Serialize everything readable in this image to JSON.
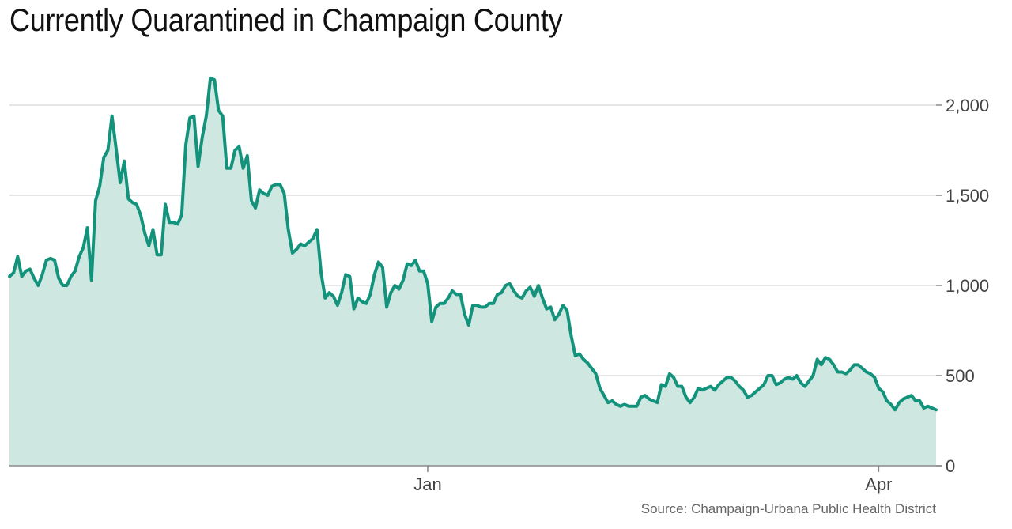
{
  "chart_data": {
    "type": "area",
    "title": "Currently Quarantined in Champaign County",
    "source": "Source: Champaign-Urbana Public Health District",
    "xlabel": "",
    "ylabel": "",
    "ylim": [
      0,
      2000
    ],
    "y_ticks": [
      0,
      500,
      1000,
      1500,
      2000
    ],
    "y_tick_labels": [
      "0",
      "500",
      "1,000",
      "1,500",
      "2,000"
    ],
    "x_ticks": [
      {
        "index": 102,
        "label": "Jan"
      },
      {
        "index": 212,
        "label": "Apr"
      }
    ],
    "grid": true,
    "colors": {
      "line": "#14937c",
      "fill": "#cfe7e1",
      "grid": "#e6e6e6",
      "axis": "#8a8a8a"
    },
    "series": [
      {
        "name": "",
        "values": [
          1050,
          1070,
          1160,
          1050,
          1080,
          1090,
          1040,
          1000,
          1060,
          1140,
          1150,
          1140,
          1040,
          1000,
          1000,
          1050,
          1080,
          1160,
          1210,
          1320,
          1030,
          1470,
          1550,
          1710,
          1750,
          1940,
          1760,
          1570,
          1690,
          1480,
          1460,
          1450,
          1390,
          1290,
          1220,
          1310,
          1170,
          1170,
          1450,
          1350,
          1350,
          1340,
          1390,
          1780,
          1930,
          1940,
          1660,
          1820,
          1940,
          2150,
          2140,
          1970,
          1940,
          1650,
          1650,
          1750,
          1770,
          1650,
          1720,
          1470,
          1430,
          1530,
          1510,
          1500,
          1550,
          1560,
          1560,
          1510,
          1310,
          1180,
          1200,
          1230,
          1220,
          1240,
          1260,
          1310,
          1070,
          930,
          960,
          940,
          890,
          960,
          1060,
          1050,
          870,
          930,
          910,
          900,
          950,
          1060,
          1130,
          1100,
          880,
          960,
          1000,
          980,
          1030,
          1120,
          1110,
          1140,
          1080,
          1080,
          1010,
          800,
          880,
          900,
          900,
          930,
          970,
          950,
          950,
          840,
          780,
          890,
          890,
          880,
          880,
          900,
          900,
          950,
          960,
          1000,
          1010,
          970,
          940,
          930,
          970,
          990,
          940,
          1000,
          930,
          870,
          880,
          810,
          840,
          890,
          860,
          720,
          610,
          620,
          590,
          570,
          540,
          510,
          430,
          390,
          350,
          360,
          340,
          330,
          340,
          330,
          330,
          330,
          380,
          390,
          370,
          360,
          350,
          450,
          440,
          510,
          490,
          440,
          440,
          380,
          350,
          380,
          430,
          420,
          430,
          440,
          420,
          450,
          470,
          490,
          490,
          470,
          440,
          420,
          380,
          390,
          410,
          430,
          450,
          500,
          500,
          450,
          460,
          480,
          490,
          480,
          500,
          460,
          440,
          470,
          500,
          590,
          560,
          600,
          590,
          560,
          520,
          520,
          510,
          530,
          560,
          560,
          540,
          520,
          510,
          490,
          430,
          410,
          360,
          340,
          310,
          350,
          370,
          380,
          390,
          360,
          360,
          320,
          330,
          320,
          310
        ]
      }
    ]
  }
}
